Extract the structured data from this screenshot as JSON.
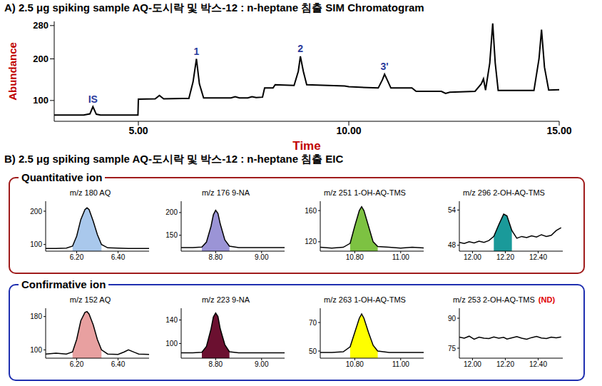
{
  "chart_data": {
    "type": "line",
    "title": "A) 2.5 μg spiking sample AQ-도시락 및 박스-12 : n-heptane 침출 SIM Chromatogram",
    "x_label": "Time",
    "y_label": "Abundance",
    "label_color": "#c00000",
    "color": "#000000",
    "x": [
      3.0,
      3.7,
      3.85,
      3.92,
      4.0,
      4.1,
      4.99,
      5.0,
      5.4,
      5.5,
      5.6,
      6.2,
      6.3,
      6.38,
      6.45,
      6.55,
      7.2,
      7.3,
      7.4,
      7.6,
      7.7,
      7.8,
      7.95,
      8.0,
      8.2,
      8.25,
      8.7,
      8.8,
      8.85,
      8.92,
      9.0,
      9.9,
      10.0,
      10.7,
      10.8,
      10.85,
      10.92,
      11.0,
      11.5,
      11.6,
      12.2,
      12.3,
      12.4,
      13.0,
      13.15,
      13.2,
      13.25,
      13.35,
      13.42,
      13.48,
      13.55,
      14.4,
      14.52,
      14.58,
      14.65,
      14.75,
      15.0
    ],
    "values": [
      65,
      65,
      68,
      85,
      67,
      65,
      65,
      103,
      104,
      112,
      104,
      105,
      145,
      200,
      140,
      106,
      106,
      109,
      106,
      106,
      109,
      107,
      108,
      130,
      130,
      138,
      136,
      170,
      206,
      170,
      138,
      135,
      133,
      130,
      150,
      163,
      148,
      130,
      130,
      122,
      122,
      117,
      120,
      122,
      140,
      152,
      125,
      190,
      285,
      190,
      124,
      124,
      200,
      270,
      180,
      125,
      126
    ],
    "xlim": [
      3,
      15
    ],
    "xticks": [
      {
        "value": 5,
        "label": "5.00"
      },
      {
        "value": 10,
        "label": "10.00"
      },
      {
        "value": 15,
        "label": "15.00"
      }
    ],
    "ylim": [
      50,
      290
    ],
    "yticks": [
      100,
      200,
      280
    ],
    "annotations": [
      {
        "text": "IS",
        "x": 3.92,
        "y": 85,
        "color": "#2a3a9c"
      },
      {
        "text": "1",
        "x": 6.38,
        "y": 200,
        "color": "#2a3a9c"
      },
      {
        "text": "2",
        "x": 8.85,
        "y": 206,
        "color": "#2a3a9c"
      },
      {
        "text": "3'",
        "x": 10.85,
        "y": 163,
        "color": "#2a3a9c"
      }
    ]
  },
  "panel_b": {
    "title": "B) 2.5 μg spiking sample AQ-도시락 및 박스-12 : n-heptane 침출 EIC",
    "groups": [
      {
        "title": "Quantitative ion",
        "color": "#a01c1c",
        "charts": [
          {
            "type": "line",
            "title": "m/z 180 AQ",
            "color": "#a9c8ec",
            "x": [
              6.05,
              6.1,
              6.15,
              6.18,
              6.2,
              6.22,
              6.24,
              6.25,
              6.26,
              6.28,
              6.3,
              6.32,
              6.35,
              6.4,
              6.45,
              6.5,
              6.55
            ],
            "values": [
              88,
              88,
              89,
              95,
              125,
              175,
              205,
              210,
              205,
              170,
              130,
              100,
              90,
              89,
              88,
              88,
              88
            ],
            "integration": [
              6.17,
              6.34
            ],
            "xlim": [
              6.05,
              6.55
            ],
            "xticks": [
              {
                "value": 6.2,
                "label": "6.20"
              },
              {
                "value": 6.4,
                "label": "6.40"
              }
            ],
            "ylim": [
              80,
              230
            ],
            "yticks": [
              100,
              200
            ]
          },
          {
            "type": "line",
            "title": "m/z 176 9-NA",
            "color": "#9b94d6",
            "x": [
              8.65,
              8.7,
              8.74,
              8.76,
              8.78,
              8.79,
              8.8,
              8.81,
              8.82,
              8.84,
              8.86,
              8.9,
              8.95,
              9.0,
              9.05,
              9.1
            ],
            "values": [
              123,
              123,
              124,
              135,
              170,
              195,
              205,
              198,
              175,
              140,
              126,
              123,
              123,
              123,
              123,
              123
            ],
            "integration": [
              8.74,
              8.87
            ],
            "xlim": [
              8.65,
              9.1
            ],
            "xticks": [
              {
                "value": 8.8,
                "label": "8.80"
              },
              {
                "value": 9,
                "label": "9.00"
              }
            ],
            "ylim": [
              115,
              225
            ],
            "yticks": [
              150,
              200
            ]
          },
          {
            "type": "line",
            "title": "m/z 251 1-OH-AQ-TMS",
            "color": "#7dc242",
            "x": [
              10.65,
              10.7,
              10.75,
              10.78,
              10.8,
              10.82,
              10.83,
              10.84,
              10.86,
              10.88,
              10.9,
              10.95,
              11.0,
              11.05,
              11.1
            ],
            "values": [
              113,
              112,
              113,
              118,
              140,
              160,
              165,
              160,
              140,
              120,
              114,
              113,
              112,
              113,
              112
            ],
            "integration": [
              10.77,
              10.9
            ],
            "xlim": [
              10.65,
              11.1
            ],
            "xticks": [
              {
                "value": 10.8,
                "label": "10.80"
              },
              {
                "value": 11,
                "label": "11.00"
              }
            ],
            "ylim": [
              108,
              172
            ],
            "yticks": [
              120,
              160
            ]
          },
          {
            "type": "line",
            "title": "m/z 296 2-OH-AQ-TMS",
            "color": "#1a9a9a",
            "x": [
              11.92,
              11.95,
              11.98,
              12.01,
              12.04,
              12.07,
              12.1,
              12.13,
              12.16,
              12.19,
              12.21,
              12.24,
              12.27,
              12.3,
              12.33,
              12.36,
              12.39,
              12.42,
              12.45,
              12.48,
              12.51,
              12.54
            ],
            "values": [
              48.5,
              48.3,
              48.6,
              48.4,
              48.7,
              48.5,
              48.8,
              49.5,
              51.5,
              53.3,
              53.0,
              50.5,
              49.2,
              49.5,
              49.3,
              49.6,
              49.4,
              49.8,
              49.5,
              49.7,
              50.5,
              51.0
            ],
            "integration": [
              12.12,
              12.26
            ],
            "xlim": [
              11.92,
              12.55
            ],
            "xticks": [
              {
                "value": 12,
                "label": "12.00"
              },
              {
                "value": 12.2,
                "label": "12.20"
              },
              {
                "value": 12.4,
                "label": "12.40"
              }
            ],
            "ylim": [
              47,
              55.5
            ],
            "yticks": [
              48,
              54
            ]
          }
        ]
      },
      {
        "title": "Confirmative ion",
        "color": "#1f2fb0",
        "charts": [
          {
            "type": "line",
            "title": "m/z 152 AQ",
            "color": "#e8a0a0",
            "x": [
              6.05,
              6.1,
              6.15,
              6.18,
              6.2,
              6.22,
              6.24,
              6.25,
              6.26,
              6.28,
              6.3,
              6.32,
              6.35,
              6.4,
              6.43,
              6.45,
              6.48,
              6.5,
              6.55
            ],
            "values": [
              90,
              92,
              90,
              95,
              125,
              170,
              190,
              192,
              186,
              160,
              125,
              100,
              90,
              89,
              95,
              100,
              94,
              90,
              89
            ],
            "integration": [
              6.17,
              6.34
            ],
            "xlim": [
              6.05,
              6.55
            ],
            "xticks": [
              {
                "value": 6.2,
                "label": "6.20"
              },
              {
                "value": 6.4,
                "label": "6.40"
              }
            ],
            "ylim": [
              80,
              200
            ],
            "yticks": [
              100,
              180
            ]
          },
          {
            "type": "line",
            "title": "m/z 223 9-NA",
            "color": "#6b1030",
            "x": [
              8.65,
              8.7,
              8.74,
              8.76,
              8.78,
              8.79,
              8.8,
              8.81,
              8.82,
              8.84,
              8.86,
              8.9,
              8.95,
              9.0,
              9.05,
              9.1
            ],
            "values": [
              84,
              84,
              85,
              95,
              125,
              145,
              152,
              146,
              125,
              98,
              86,
              84,
              84,
              84,
              84,
              84
            ],
            "integration": [
              8.74,
              8.87
            ],
            "xlim": [
              8.65,
              9.1
            ],
            "xticks": [
              {
                "value": 8.8,
                "label": "8.80"
              },
              {
                "value": 9,
                "label": "9.00"
              }
            ],
            "ylim": [
              75,
              160
            ],
            "yticks": [
              100,
              140
            ]
          },
          {
            "type": "line",
            "title": "m/z 263 1-OH-AQ-TMS",
            "color": "#ffff00",
            "x": [
              10.65,
              10.7,
              10.75,
              10.78,
              10.8,
              10.82,
              10.83,
              10.84,
              10.86,
              10.88,
              10.9,
              10.95,
              11.0,
              11.05,
              11.1
            ],
            "values": [
              49,
              49,
              49.5,
              53,
              63,
              73,
              76,
              73,
              63,
              54,
              50,
              49,
              49,
              49,
              49
            ],
            "integration": [
              10.77,
              10.9
            ],
            "xlim": [
              10.65,
              11.1
            ],
            "xticks": [
              {
                "value": 10.8,
                "label": "10.80"
              },
              {
                "value": 11,
                "label": "11.00"
              }
            ],
            "ylim": [
              45,
              80
            ],
            "yticks": [
              50,
              70
            ]
          },
          {
            "type": "line",
            "title": "m/z 253 2-OH-AQ-TMS",
            "annotation": {
              "text": "(ND)",
              "color": "#e00000"
            },
            "x": [
              11.92,
              11.95,
              11.98,
              12.01,
              12.04,
              12.07,
              12.1,
              12.13,
              12.16,
              12.19,
              12.21,
              12.24,
              12.27,
              12.3,
              12.33,
              12.36,
              12.39,
              12.42,
              12.45,
              12.48,
              12.51,
              12.54
            ],
            "values": [
              80.5,
              80,
              81,
              79.5,
              80.5,
              80,
              79.8,
              80.6,
              80,
              80.4,
              79.6,
              80.2,
              80.8,
              80,
              79.5,
              80.3,
              80.9,
              80.1,
              79.8,
              80.5,
              80.2,
              80.6
            ],
            "xlim": [
              11.92,
              12.55
            ],
            "xticks": [
              {
                "value": 12,
                "label": "12.00"
              },
              {
                "value": 12.2,
                "label": "12.20"
              },
              {
                "value": 12.4,
                "label": "12.40"
              }
            ],
            "ylim": [
              70,
              95
            ],
            "yticks": [
              75,
              90
            ]
          }
        ]
      }
    ]
  }
}
